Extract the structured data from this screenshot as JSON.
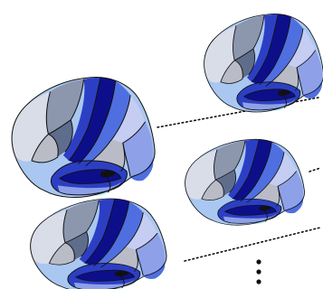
{
  "figure": {
    "brains": [
      {
        "name": "brain-left-top"
      },
      {
        "name": "brain-right-top"
      },
      {
        "name": "brain-right-middle"
      },
      {
        "name": "brain-left-bottom"
      }
    ],
    "connectors": [
      {
        "name": "dotted-connector-top"
      },
      {
        "name": "dotted-connector-middle"
      },
      {
        "name": "dotted-connector-bottom"
      }
    ],
    "ellipsis": {
      "dot_count": 3
    }
  },
  "colors": {
    "outline": "#111111",
    "navy": "#0d0f8a",
    "royal": "#2c3fc4",
    "blue": "#4f6fe0",
    "periwinkle": "#8ea0e8",
    "lavender": "#c6cdf2",
    "sky": "#a9c7f0",
    "slate": "#8c96ad",
    "steel": "#5f6d8c",
    "gray": "#b9bcc6",
    "pale": "#d8dde8",
    "cyan": "#b8ecf5"
  }
}
